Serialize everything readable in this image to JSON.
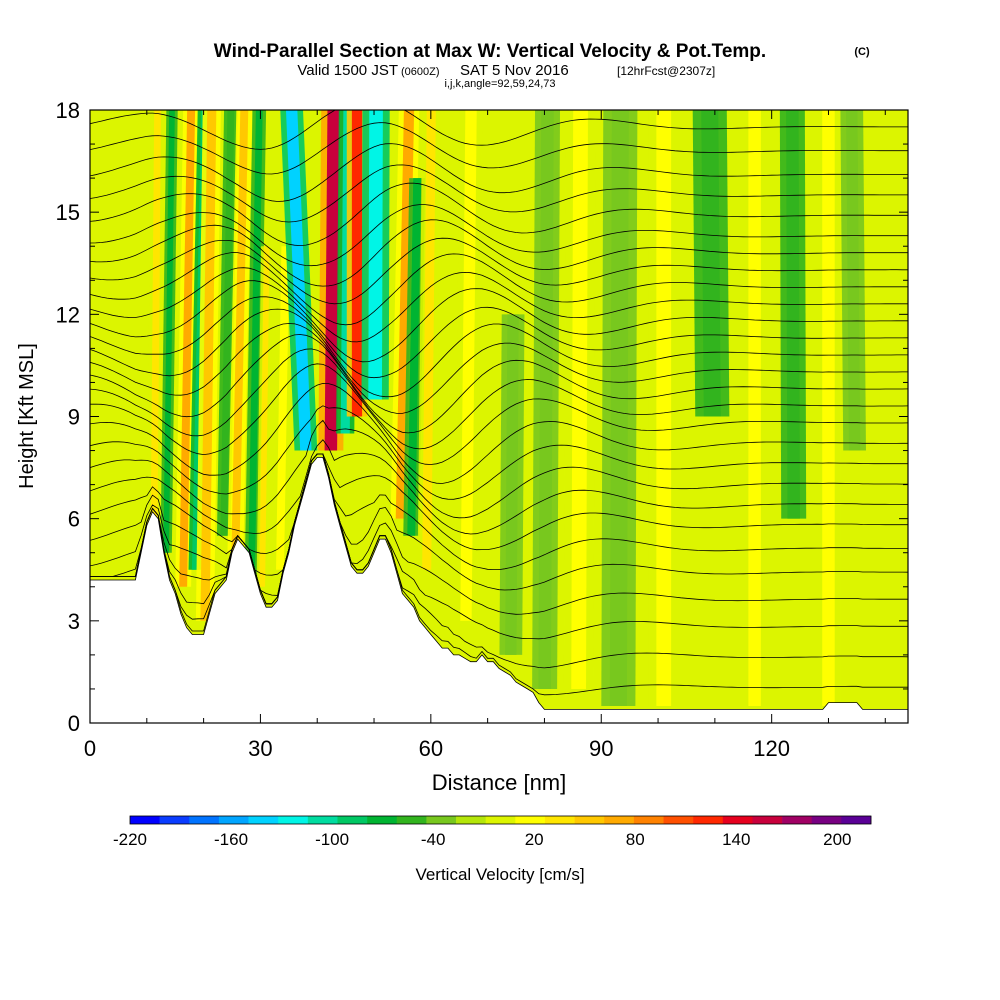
{
  "chart_data": {
    "type": "heatmap",
    "title": "Wind-Parallel Section at Max W: Vertical Velocity & Pot.Temp.",
    "title_mark": "(C)",
    "subtitle": {
      "valid": "Valid 1500 JST",
      "zulu": "(0600Z)",
      "date": "SAT 5 Nov 2016",
      "forecast": "[12hrFcst@2307z]"
    },
    "grid_info": "i,j,k,angle=92,59,24,73",
    "xlabel": "Distance [nm]",
    "ylabel": "Height [Kft MSL]",
    "xlim": [
      0,
      144
    ],
    "ylim": [
      0,
      18
    ],
    "x_ticks": [
      0,
      30,
      60,
      90,
      120
    ],
    "y_ticks": [
      0,
      3,
      6,
      9,
      12,
      15,
      18
    ],
    "x_tick_labels": [
      "0",
      "30",
      "60",
      "90",
      "120"
    ],
    "y_tick_labels": [
      "0",
      "3",
      "6",
      "9",
      "12",
      "15",
      "18"
    ],
    "colorbar": {
      "label": "Vertical Velocity [cm/s]",
      "min": -220,
      "max": 220,
      "step": 20,
      "tick_values": [
        -220,
        -160,
        -100,
        -40,
        20,
        80,
        140,
        200
      ],
      "tick_labels": [
        "-220",
        "-160",
        "-100",
        "-40",
        "20",
        "80",
        "140",
        "200"
      ],
      "colors": [
        "#0000ff",
        "#0a3cff",
        "#0073ff",
        "#00a5ff",
        "#00d2ff",
        "#00f5e6",
        "#00dca0",
        "#00c864",
        "#00b432",
        "#32b41e",
        "#78c81e",
        "#b4e60a",
        "#dcf500",
        "#ffff00",
        "#ffe600",
        "#ffc800",
        "#ffaa00",
        "#ff8200",
        "#ff5000",
        "#ff2800",
        "#e6001e",
        "#c8003c",
        "#a00064",
        "#780082",
        "#5a0096"
      ]
    },
    "terrain": [
      {
        "x": 0,
        "h": 4.2
      },
      {
        "x": 5,
        "h": 4.2
      },
      {
        "x": 8,
        "h": 4.2
      },
      {
        "x": 9,
        "h": 5.0
      },
      {
        "x": 10,
        "h": 5.8
      },
      {
        "x": 11,
        "h": 6.2
      },
      {
        "x": 12,
        "h": 6.0
      },
      {
        "x": 13,
        "h": 5.0
      },
      {
        "x": 14,
        "h": 4.2
      },
      {
        "x": 15,
        "h": 3.8
      },
      {
        "x": 16,
        "h": 3.2
      },
      {
        "x": 17,
        "h": 2.8
      },
      {
        "x": 18,
        "h": 2.6
      },
      {
        "x": 19,
        "h": 2.6
      },
      {
        "x": 20,
        "h": 2.6
      },
      {
        "x": 21,
        "h": 3.2
      },
      {
        "x": 22,
        "h": 3.8
      },
      {
        "x": 23,
        "h": 4.0
      },
      {
        "x": 24,
        "h": 4.2
      },
      {
        "x": 25,
        "h": 5.0
      },
      {
        "x": 26,
        "h": 5.4
      },
      {
        "x": 27,
        "h": 5.2
      },
      {
        "x": 28,
        "h": 5.0
      },
      {
        "x": 29,
        "h": 4.4
      },
      {
        "x": 30,
        "h": 3.8
      },
      {
        "x": 31,
        "h": 3.4
      },
      {
        "x": 32,
        "h": 3.4
      },
      {
        "x": 33,
        "h": 3.6
      },
      {
        "x": 34,
        "h": 4.4
      },
      {
        "x": 35,
        "h": 5.0
      },
      {
        "x": 36,
        "h": 5.8
      },
      {
        "x": 37,
        "h": 6.4
      },
      {
        "x": 38,
        "h": 7.0
      },
      {
        "x": 39,
        "h": 7.6
      },
      {
        "x": 40,
        "h": 7.8
      },
      {
        "x": 41,
        "h": 7.8
      },
      {
        "x": 42,
        "h": 7.2
      },
      {
        "x": 43,
        "h": 6.4
      },
      {
        "x": 44,
        "h": 5.8
      },
      {
        "x": 45,
        "h": 5.2
      },
      {
        "x": 46,
        "h": 4.6
      },
      {
        "x": 47,
        "h": 4.4
      },
      {
        "x": 48,
        "h": 4.4
      },
      {
        "x": 49,
        "h": 4.6
      },
      {
        "x": 50,
        "h": 5.0
      },
      {
        "x": 51,
        "h": 5.4
      },
      {
        "x": 52,
        "h": 5.4
      },
      {
        "x": 53,
        "h": 5.0
      },
      {
        "x": 54,
        "h": 4.4
      },
      {
        "x": 55,
        "h": 3.8
      },
      {
        "x": 56,
        "h": 3.6
      },
      {
        "x": 57,
        "h": 3.4
      },
      {
        "x": 58,
        "h": 3.0
      },
      {
        "x": 59,
        "h": 2.8
      },
      {
        "x": 60,
        "h": 2.6
      },
      {
        "x": 61,
        "h": 2.4
      },
      {
        "x": 62,
        "h": 2.2
      },
      {
        "x": 63,
        "h": 2.2
      },
      {
        "x": 64,
        "h": 2.0
      },
      {
        "x": 65,
        "h": 2.0
      },
      {
        "x": 66,
        "h": 1.9
      },
      {
        "x": 67,
        "h": 1.8
      },
      {
        "x": 68,
        "h": 1.8
      },
      {
        "x": 69,
        "h": 2.0
      },
      {
        "x": 70,
        "h": 1.8
      },
      {
        "x": 71,
        "h": 1.8
      },
      {
        "x": 72,
        "h": 1.6
      },
      {
        "x": 73,
        "h": 1.5
      },
      {
        "x": 74,
        "h": 1.4
      },
      {
        "x": 75,
        "h": 1.2
      },
      {
        "x": 76,
        "h": 1.1
      },
      {
        "x": 77,
        "h": 1.0
      },
      {
        "x": 78,
        "h": 0.9
      },
      {
        "x": 79,
        "h": 0.6
      },
      {
        "x": 80,
        "h": 0.4
      },
      {
        "x": 81,
        "h": 0.4
      },
      {
        "x": 84,
        "h": 0.4
      },
      {
        "x": 90,
        "h": 0.4
      },
      {
        "x": 100,
        "h": 0.4
      },
      {
        "x": 110,
        "h": 0.4
      },
      {
        "x": 120,
        "h": 0.4
      },
      {
        "x": 129,
        "h": 0.4
      },
      {
        "x": 130,
        "h": 0.6
      },
      {
        "x": 135,
        "h": 0.6
      },
      {
        "x": 136,
        "h": 0.4
      },
      {
        "x": 144,
        "h": 0.4
      }
    ],
    "velocity_bands": [
      {
        "x0": 11,
        "lean": 0.05,
        "width": 1.2,
        "value": 60,
        "ymin": 4.5,
        "ymax": 18
      },
      {
        "x0": 13,
        "lean": 0.08,
        "width": 1.0,
        "value": -60,
        "ymin": 5.0,
        "ymax": 18
      },
      {
        "x0": 16,
        "lean": 0.1,
        "width": 1.4,
        "value": 100,
        "ymin": 4.0,
        "ymax": 18
      },
      {
        "x0": 18,
        "lean": 0.12,
        "width": 1.2,
        "value": -80,
        "ymin": 4.5,
        "ymax": 18
      },
      {
        "x0": 20,
        "lean": 0.08,
        "width": 1.6,
        "value": 80,
        "ymin": 3.0,
        "ymax": 18
      },
      {
        "x0": 23,
        "lean": 0.1,
        "width": 1.2,
        "value": -40,
        "ymin": 5.5,
        "ymax": 18
      },
      {
        "x0": 25,
        "lean": 0.12,
        "width": 1.4,
        "value": 80,
        "ymin": 5.0,
        "ymax": 18
      },
      {
        "x0": 28,
        "lean": 0.1,
        "width": 1.2,
        "value": -60,
        "ymin": 3.5,
        "ymax": 18
      },
      {
        "x0": 30,
        "lean": 0.08,
        "width": 1.0,
        "value": 60,
        "ymin": 4.0,
        "ymax": 14
      },
      {
        "x0": 33,
        "lean": 0.1,
        "width": 1.4,
        "value": 40,
        "ymin": 4.5,
        "ymax": 14
      },
      {
        "x0": 40,
        "lean": -0.25,
        "width": 2.0,
        "value": -140,
        "ymin": 8.0,
        "ymax": 18
      },
      {
        "x0": 42,
        "lean": 0.05,
        "width": 2.2,
        "value": 200,
        "ymin": 8.0,
        "ymax": 18
      },
      {
        "x0": 44.5,
        "lean": 0.05,
        "width": 1.6,
        "value": -100,
        "ymin": 8.5,
        "ymax": 18
      },
      {
        "x0": 47,
        "lean": 0.0,
        "width": 1.8,
        "value": 160,
        "ymin": 9.0,
        "ymax": 18
      },
      {
        "x0": 50,
        "lean": 0.02,
        "width": 2.4,
        "value": -120,
        "ymin": 9.5,
        "ymax": 18
      },
      {
        "x0": 54,
        "lean": 0.12,
        "width": 1.8,
        "value": 100,
        "ymin": 6.0,
        "ymax": 18
      },
      {
        "x0": 56,
        "lean": 0.1,
        "width": 1.4,
        "value": -60,
        "ymin": 5.5,
        "ymax": 16
      },
      {
        "x0": 59,
        "lean": 0.06,
        "width": 1.6,
        "value": 60,
        "ymin": 4.5,
        "ymax": 18
      },
      {
        "x0": 66,
        "lean": 0.06,
        "width": 2.0,
        "value": 40,
        "ymin": 3.0,
        "ymax": 18
      },
      {
        "x0": 74,
        "lean": 0.04,
        "width": 2.0,
        "value": -20,
        "ymin": 2.0,
        "ymax": 12
      },
      {
        "x0": 80,
        "lean": 0.03,
        "width": 2.2,
        "value": -20,
        "ymin": 1.0,
        "ymax": 18
      },
      {
        "x0": 86,
        "lean": 0.02,
        "width": 2.6,
        "value": 40,
        "ymin": 1.0,
        "ymax": 18
      },
      {
        "x0": 93,
        "lean": 0.02,
        "width": 3.0,
        "value": -20,
        "ymin": 0.5,
        "ymax": 18
      },
      {
        "x0": 101,
        "lean": 0.0,
        "width": 2.6,
        "value": 40,
        "ymin": 0.5,
        "ymax": 18
      },
      {
        "x0": 110,
        "lean": -0.05,
        "width": 3.0,
        "value": -40,
        "ymin": 9.0,
        "ymax": 18
      },
      {
        "x0": 117,
        "lean": 0.0,
        "width": 2.2,
        "value": 40,
        "ymin": 0.5,
        "ymax": 18
      },
      {
        "x0": 124,
        "lean": -0.02,
        "width": 2.2,
        "value": -40,
        "ymin": 6.0,
        "ymax": 18
      },
      {
        "x0": 130,
        "lean": 0.0,
        "width": 2.2,
        "value": 40,
        "ymin": 0.5,
        "ymax": 18
      },
      {
        "x0": 135,
        "lean": -0.05,
        "width": 2.0,
        "value": -20,
        "ymin": 8.0,
        "ymax": 18
      }
    ],
    "isentropes": {
      "series": [
        {
          "base": 1.0,
          "amp": 0.5
        },
        {
          "base": 1.9,
          "amp": 0.7
        },
        {
          "base": 2.8,
          "amp": 0.8
        },
        {
          "base": 3.6,
          "amp": 0.9
        },
        {
          "base": 4.4,
          "amp": 1.0
        },
        {
          "base": 5.1,
          "amp": 1.1
        },
        {
          "base": 5.8,
          "amp": 1.2
        },
        {
          "base": 6.4,
          "amp": 1.3
        },
        {
          "base": 7.0,
          "amp": 1.4
        },
        {
          "base": 7.6,
          "amp": 1.4
        },
        {
          "base": 8.2,
          "amp": 1.5
        },
        {
          "base": 8.8,
          "amp": 1.5
        },
        {
          "base": 9.3,
          "amp": 1.5
        },
        {
          "base": 9.8,
          "amp": 1.5
        },
        {
          "base": 10.3,
          "amp": 1.4
        },
        {
          "base": 10.8,
          "amp": 1.4
        },
        {
          "base": 11.3,
          "amp": 1.3
        },
        {
          "base": 11.8,
          "amp": 1.3
        },
        {
          "base": 12.3,
          "amp": 1.2
        },
        {
          "base": 12.8,
          "amp": 1.2
        },
        {
          "base": 13.3,
          "amp": 1.1
        },
        {
          "base": 13.8,
          "amp": 1.1
        },
        {
          "base": 14.3,
          "amp": 1.0
        },
        {
          "base": 14.9,
          "amp": 1.0
        },
        {
          "base": 15.5,
          "amp": 0.9
        },
        {
          "base": 16.1,
          "amp": 0.9
        },
        {
          "base": 16.8,
          "amp": 0.8
        },
        {
          "base": 17.5,
          "amp": 0.8
        }
      ]
    }
  }
}
